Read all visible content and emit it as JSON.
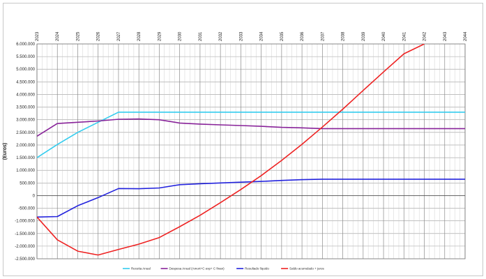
{
  "chart_data": {
    "type": "line",
    "title": "",
    "ylabel": "(Euros)",
    "xlabel": "",
    "x": [
      2023,
      2024,
      2025,
      2026,
      2027,
      2028,
      2029,
      2030,
      2031,
      2032,
      2033,
      2034,
      2035,
      2036,
      2037,
      2038,
      2039,
      2040,
      2041,
      2042,
      2043,
      2044
    ],
    "xlim": [
      2023,
      2044
    ],
    "ylim": [
      -2500000,
      6000000
    ],
    "ytick_step": 500000,
    "ytick_labels": [
      "6.000.000",
      "5.500.000",
      "5.000.000",
      "4.500.000",
      "4.000.000",
      "3.500.000",
      "3.000.000",
      "2.500.000",
      "2.000.000",
      "1.500.000",
      "1.000.000",
      "500.000",
      "0",
      "-500.000",
      "-1.000.000",
      "-1.500.000",
      "-2.000.000",
      "-2.500.000"
    ],
    "xaxis_position": "top",
    "grid": true,
    "legend_position": "bottom",
    "series": [
      {
        "name": "Receita Anual",
        "color": "#33ccee",
        "values": [
          1500000,
          2020000,
          2500000,
          2900000,
          3300000,
          3300000,
          3300000,
          3300000,
          3300000,
          3300000,
          3300000,
          3300000,
          3300000,
          3300000,
          3300000,
          3300000,
          3300000,
          3300000,
          3300000,
          3300000,
          3300000,
          3300000
        ]
      },
      {
        "name": "Despesa Anual (Amort+C exp+ C finan)",
        "color": "#882299",
        "values": [
          2350000,
          2850000,
          2900000,
          2950000,
          3020000,
          3030000,
          3000000,
          2870000,
          2830000,
          2800000,
          2770000,
          2740000,
          2700000,
          2680000,
          2650000,
          2650000,
          2650000,
          2650000,
          2650000,
          2650000,
          2650000,
          2650000
        ]
      },
      {
        "name": "Resultado líquido",
        "color": "#2222dd",
        "values": [
          -850000,
          -830000,
          -400000,
          -80000,
          280000,
          270000,
          300000,
          430000,
          470000,
          500000,
          530000,
          560000,
          600000,
          630000,
          650000,
          650000,
          650000,
          650000,
          650000,
          650000,
          650000,
          650000
        ]
      },
      {
        "name": "Saldo acumulado + juros",
        "color": "#ee2222",
        "values": [
          -850000,
          -1750000,
          -2200000,
          -2350000,
          -2130000,
          -1920000,
          -1660000,
          -1230000,
          -780000,
          -280000,
          240000,
          790000,
          1390000,
          2030000,
          2710000,
          3420000,
          4160000,
          4890000,
          5610000,
          6000000,
          null,
          null
        ]
      }
    ]
  }
}
